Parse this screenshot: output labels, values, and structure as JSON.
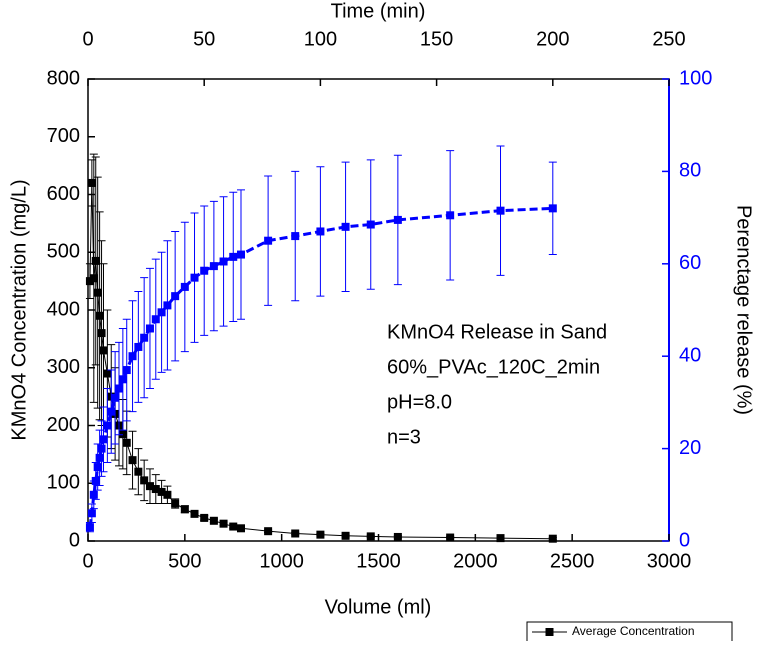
{
  "chart_data": {
    "type": "scatter",
    "xlabel": "Volume (ml)",
    "x2label": "Time (min)",
    "ylabel": "KMnO4 Concentration (mg/L)",
    "y2label": "Perenctage release (%)",
    "annotation": [
      "KMnO4 Release in Sand",
      "60%_PVAc_120C_2min",
      "pH=8.0",
      "n=3"
    ],
    "xlim": [
      0,
      3000
    ],
    "xticks": [
      0,
      500,
      1000,
      1500,
      2000,
      2500,
      3000
    ],
    "x2lim": [
      0,
      250
    ],
    "x2ticks": [
      0,
      50,
      100,
      150,
      200,
      250
    ],
    "ylim": [
      0,
      800
    ],
    "yticks": [
      0,
      100,
      200,
      300,
      400,
      500,
      600,
      700,
      800
    ],
    "y2lim": [
      0,
      100
    ],
    "y2ticks": [
      0,
      20,
      40,
      60,
      80,
      100
    ],
    "y2color": "#0000ff",
    "legend": "lower right",
    "x": [
      10,
      20,
      30,
      40,
      50,
      60,
      70,
      80,
      100,
      120,
      140,
      160,
      180,
      200,
      230,
      260,
      290,
      320,
      350,
      380,
      410,
      450,
      500,
      550,
      600,
      650,
      700,
      750,
      790,
      930,
      1070,
      1200,
      1330,
      1460,
      1600,
      1870,
      2130,
      2400
    ],
    "series": [
      {
        "name": "Average Concentration",
        "color": "#000000",
        "line": "solid",
        "values": [
          450,
          620,
          455,
          485,
          430,
          390,
          360,
          330,
          290,
          250,
          220,
          200,
          185,
          170,
          140,
          120,
          105,
          95,
          90,
          85,
          80,
          65,
          55,
          47,
          40,
          35,
          30,
          25,
          22,
          17,
          13,
          11,
          9,
          8,
          7,
          6,
          5,
          4
        ],
        "errors": [
          30,
          40,
          215,
          180,
          200,
          180,
          160,
          150,
          110,
          90,
          80,
          70,
          60,
          55,
          50,
          40,
          35,
          30,
          25,
          20,
          15,
          8,
          6,
          5,
          4,
          3,
          3,
          3,
          3,
          2,
          2,
          2,
          2,
          2,
          2,
          2,
          2,
          2
        ]
      },
      {
        "name": "Perenctage release",
        "color": "#0000ff",
        "line": "dashed",
        "axis": "y2",
        "values": [
          3,
          6,
          10,
          13,
          16,
          18,
          20,
          22,
          25,
          28,
          31,
          33,
          35,
          37,
          40,
          42,
          44,
          46,
          48,
          49.5,
          51,
          53,
          55,
          57,
          58.5,
          59.5,
          60.5,
          61.5,
          62,
          65,
          66,
          67,
          68,
          68.5,
          69.5,
          70.5,
          71.5,
          72
        ],
        "errors": [
          1,
          2,
          3,
          4,
          5,
          6,
          6,
          7,
          8,
          9,
          10,
          10,
          11,
          11,
          12,
          12,
          13,
          13,
          13,
          13,
          14,
          14,
          14,
          14,
          14,
          14,
          14,
          14,
          14,
          14,
          14,
          14,
          14,
          14,
          14,
          14,
          14,
          10
        ]
      }
    ]
  }
}
